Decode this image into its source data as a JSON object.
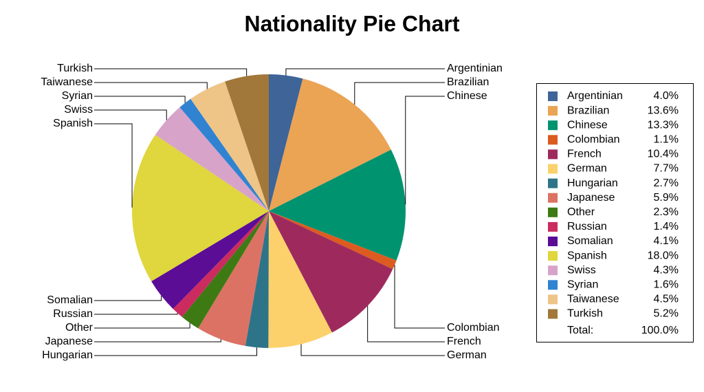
{
  "chart_data": {
    "type": "pie",
    "title": "Nationality Pie Chart",
    "categories": [
      "Argentinian",
      "Brazilian",
      "Chinese",
      "Colombian",
      "French",
      "German",
      "Hungarian",
      "Japanese",
      "Other",
      "Russian",
      "Somalian",
      "Spanish",
      "Swiss",
      "Syrian",
      "Taiwanese",
      "Turkish"
    ],
    "values": [
      4.0,
      13.6,
      13.3,
      1.1,
      10.4,
      7.7,
      2.7,
      5.9,
      2.3,
      1.4,
      4.1,
      18.0,
      4.3,
      1.6,
      4.5,
      5.2
    ],
    "value_labels": [
      "4.0%",
      "13.6%",
      "13.3%",
      "1.1%",
      "10.4%",
      "7.7%",
      "2.7%",
      "5.9%",
      "2.3%",
      "1.4%",
      "4.1%",
      "18.0%",
      "4.3%",
      "1.6%",
      "4.5%",
      "5.2%"
    ],
    "colors": [
      "#3e6498",
      "#eba354",
      "#009370",
      "#dc5b20",
      "#9e2a5d",
      "#fcd16b",
      "#2e7489",
      "#dc7264",
      "#3e7a14",
      "#cc2b60",
      "#5b0d96",
      "#e0d63d",
      "#d8a3c9",
      "#3083d1",
      "#eec487",
      "#a2773a"
    ],
    "legend": "right",
    "total_label": "Total:",
    "total": 100,
    "total_value_label": "100.0%"
  }
}
